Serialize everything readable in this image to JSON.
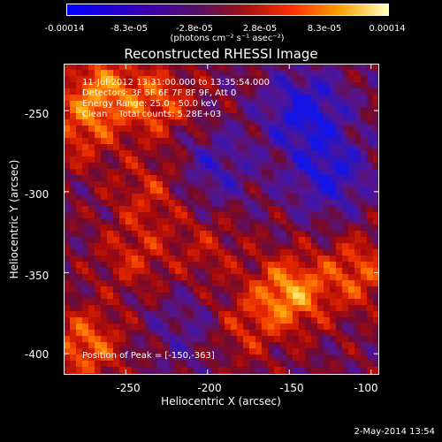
{
  "colorbar": {
    "tick_labels": [
      "-0.00014",
      "-8.3e-05",
      "-2.8e-05",
      "2.8e-05",
      "8.3e-05",
      "0.00014"
    ],
    "units": "(photons cm⁻² s⁻¹ asec⁻²)",
    "colors": [
      "#0000ff",
      "#2a00c0",
      "#5c00a8",
      "#7a0a30",
      "#d01000",
      "#ff6000",
      "#ffc000",
      "#ffffa0"
    ]
  },
  "chart_data": {
    "type": "heatmap",
    "title": "Reconstructed RHESSI Image",
    "xlabel": "Heliocentric X (arcsec)",
    "ylabel": "Heliocentric Y (arcsec)",
    "xlim": [
      -288,
      -95
    ],
    "ylim": [
      -413,
      -221
    ],
    "x_ticks": [
      -250,
      -200,
      -150,
      -100
    ],
    "y_ticks": [
      -250,
      -300,
      -350,
      -400
    ],
    "colorbar_range": [
      -0.00014,
      0.00014
    ],
    "peak_position": [
      -150,
      -363
    ]
  },
  "annotations": {
    "time_range": "11-Jul-2012 13:31:00.000 to 13:35:54.000",
    "detectors": "Detectors: 3F 5F 6F 7F 8F 9F, Att 0",
    "energy_range": "Energy Range: 25.0 - 50.0 keV",
    "clean_counts": "Clean    Total counts: 5.28E+03",
    "peak_label": "Position of Peak = [-150,-363]"
  },
  "footer": {
    "date": "2-May-2014 13:54"
  }
}
